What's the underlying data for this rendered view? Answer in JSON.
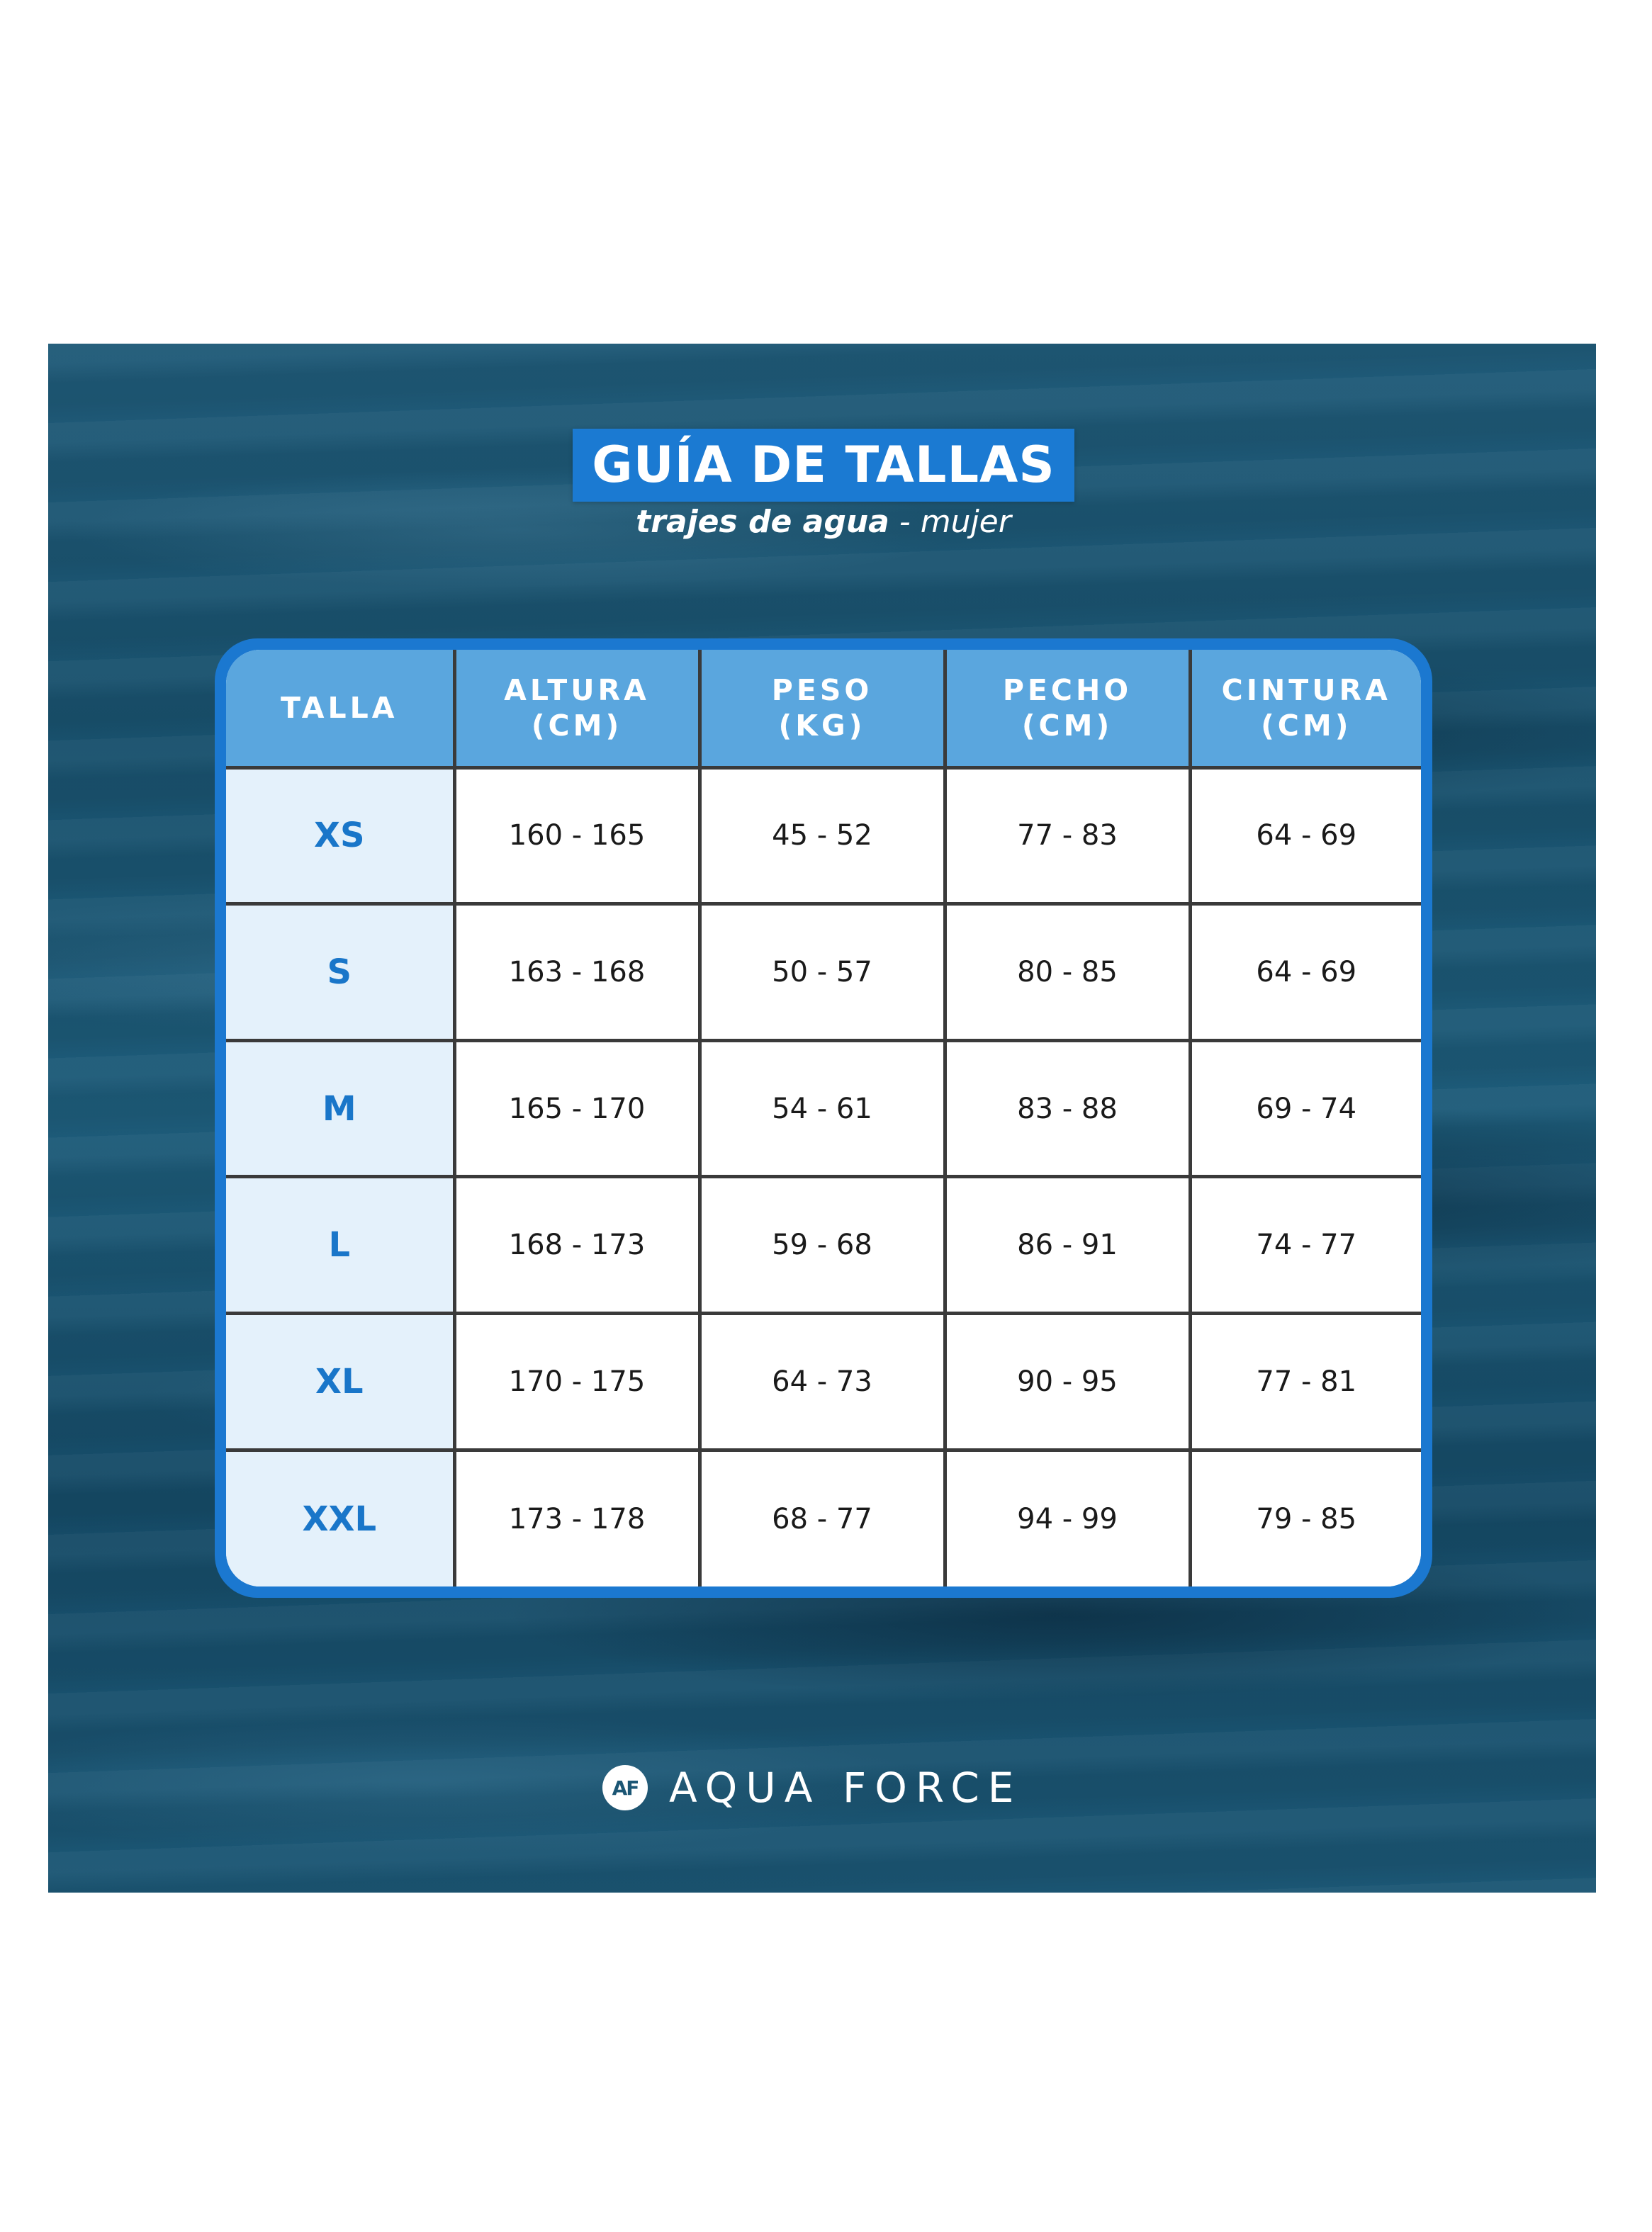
{
  "title": "GUÍA DE TALLAS",
  "subtitle": {
    "bold": "trajes de agua",
    "rest": " - mujer"
  },
  "table": {
    "headers": [
      {
        "line1": "TALLA",
        "line2": ""
      },
      {
        "line1": "ALTURA",
        "line2": "(CM)"
      },
      {
        "line1": "PESO",
        "line2": "(KG)"
      },
      {
        "line1": "PECHO",
        "line2": "(CM)"
      },
      {
        "line1": "CINTURA",
        "line2": "(CM)"
      }
    ],
    "rows": [
      {
        "size": "XS",
        "altura": "160 - 165",
        "peso": "45 - 52",
        "pecho": "77 - 83",
        "cintura": "64 - 69"
      },
      {
        "size": "S",
        "altura": "163 - 168",
        "peso": "50 - 57",
        "pecho": "80 - 85",
        "cintura": "64 - 69"
      },
      {
        "size": "M",
        "altura": "165 - 170",
        "peso": "54 - 61",
        "pecho": "83 - 88",
        "cintura": "69 - 74"
      },
      {
        "size": "L",
        "altura": "168 - 173",
        "peso": "59 - 68",
        "pecho": "86 - 91",
        "cintura": "74 - 77"
      },
      {
        "size": "XL",
        "altura": "170 - 175",
        "peso": "64 - 73",
        "pecho": "90 - 95",
        "cintura": "77 - 81"
      },
      {
        "size": "XXL",
        "altura": "173 - 178",
        "peso": "68 - 77",
        "pecho": "94 - 99",
        "cintura": "79 - 85"
      }
    ]
  },
  "brand": {
    "mark": "AF",
    "name": "AQUA FORCE"
  },
  "colors": {
    "accent_blue": "#1b78d0",
    "header_blue": "#5aa6de",
    "size_cell_bg": "#e4f1fb",
    "size_text": "#1976c9",
    "water": "#1b5674"
  }
}
